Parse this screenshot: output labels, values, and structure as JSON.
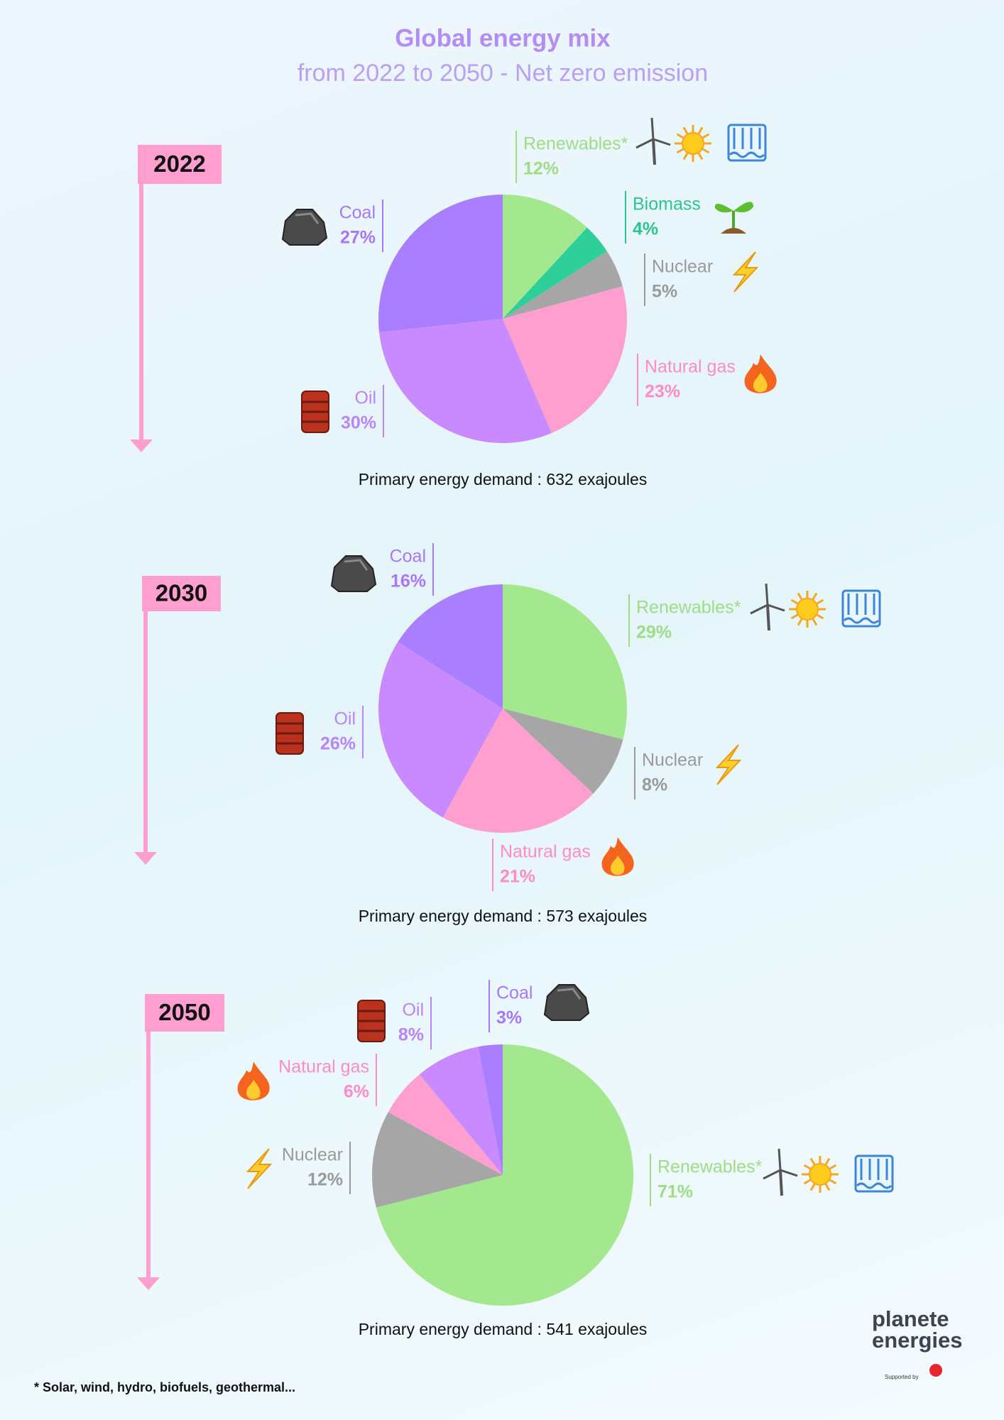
{
  "title": "Global energy mix",
  "subtitle": "from 2022 to 2050 - Net zero emission",
  "footnote": "* Solar, wind, hydro, biofuels, geothermal...",
  "logo": {
    "line1": "planete",
    "line2": "energies",
    "support": "Supported by"
  },
  "chart_data": [
    {
      "type": "pie",
      "title": "2022",
      "categories": [
        "Renewables*",
        "Biomass",
        "Nuclear",
        "Natural gas",
        "Oil",
        "Coal"
      ],
      "values": [
        12,
        4,
        5,
        23,
        30,
        27
      ],
      "value_labels": [
        "12%",
        "4%",
        "5%",
        "23%",
        "30%",
        "27%"
      ],
      "colors": [
        "#a3e88f",
        "#2fcf9a",
        "#a6a6a6",
        "#ff9fcf",
        "#c98aff",
        "#a97fff"
      ],
      "caption": "Primary energy demand : 632 exajoules"
    },
    {
      "type": "pie",
      "title": "2030",
      "categories": [
        "Renewables*",
        "Nuclear",
        "Natural gas",
        "Oil",
        "Coal"
      ],
      "values": [
        29,
        8,
        21,
        26,
        16
      ],
      "value_labels": [
        "29%",
        "8%",
        "21%",
        "26%",
        "16%"
      ],
      "colors": [
        "#a3e88f",
        "#a6a6a6",
        "#ff9fcf",
        "#c98aff",
        "#a97fff"
      ],
      "caption": "Primary energy demand : 573 exajoules"
    },
    {
      "type": "pie",
      "title": "2050",
      "categories": [
        "Renewables*",
        "Nuclear",
        "Natural gas",
        "Oil",
        "Coal"
      ],
      "values": [
        71,
        12,
        6,
        8,
        3
      ],
      "value_labels": [
        "71%",
        "12%",
        "6%",
        "8%",
        "3%"
      ],
      "colors": [
        "#a3e88f",
        "#a6a6a6",
        "#ff9fcf",
        "#c98aff",
        "#a97fff"
      ],
      "caption": "Primary energy demand : 541 exajoules"
    }
  ]
}
